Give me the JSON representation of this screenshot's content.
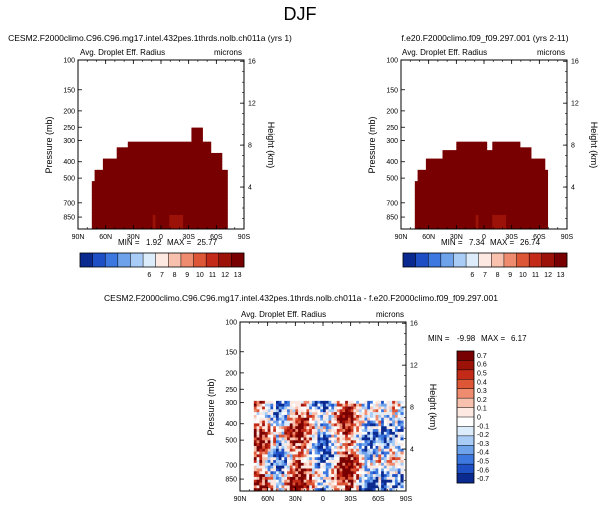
{
  "figure_title": "DJF",
  "colors": {
    "ramp_abs": [
      "#0b2a8f",
      "#1f4fc4",
      "#3c78df",
      "#6ea3ec",
      "#a8ccf6",
      "#dcecfb",
      "#fde9e2",
      "#f8c1ad",
      "#ef8c6f",
      "#dd5636",
      "#c32a18",
      "#9c1208",
      "#780000"
    ],
    "ramp_diff": [
      "#0b2a8f",
      "#1f4fc4",
      "#3c78df",
      "#6ea3ec",
      "#a8ccf6",
      "#dcecfb",
      "#ffffff",
      "#fde9e2",
      "#f8c1ad",
      "#ef8c6f",
      "#dd5636",
      "#c32a18",
      "#9c1208",
      "#780000"
    ]
  },
  "panels": [
    {
      "case_title": "CESM2.F2000climo.C96.C96.mg17.intel.432pes.1thrds.nolb.ch011a (yrs 1)",
      "var_title": "Avg. Droplet Eff. Radius",
      "units": "microns",
      "ylabel": "Pressure (mb)",
      "ylabel_right": "Height (km)",
      "min_label": "MIN =",
      "min_value": "1.92",
      "max_label": "MAX =",
      "max_value": "25.77"
    },
    {
      "case_title": "f.e20.F2000climo.f09_f09.297.001 (yrs 2-11)",
      "var_title": "Avg. Droplet Eff. Radius",
      "units": "microns",
      "ylabel": "Pressure (mb)",
      "ylabel_right": "Height (km)",
      "min_label": "MIN =",
      "min_value": "7.34",
      "max_label": "MAX =",
      "max_value": "26.74"
    },
    {
      "case_title": "CESM2.F2000climo.C96.C96.mg17.intel.432pes.1thrds.nolb.ch011a - f.e20.F2000climo.f09_f09.297.001",
      "var_title": "Avg. Droplet Eff. Radius",
      "units": "microns",
      "ylabel": "Pressure (mb)",
      "ylabel_right": "Height (km)",
      "min_label": "MIN =",
      "min_value": "-9.98",
      "max_label": "MAX =",
      "max_value": "6.17"
    }
  ],
  "chart_data": [
    {
      "type": "heatmap",
      "title": "Avg. Droplet Eff. Radius",
      "subtitle": "CESM2.F2000climo.C96.C96.mg17.intel.432pes.1thrds.nolb.ch011a (yrs 1)",
      "units": "microns",
      "xlabel": "",
      "ylabel": "Pressure (mb)",
      "ylabel_right": "Height (km)",
      "x_ticks": [
        "90N",
        "60N",
        "30N",
        "0",
        "30S",
        "60S",
        "90S"
      ],
      "y_ticks": [
        "100",
        "150",
        "200",
        "250",
        "300",
        "400",
        "500",
        "700",
        "850"
      ],
      "y_ticks_right": [
        "4",
        "8",
        "12",
        "16"
      ],
      "ylim": [
        1000,
        100
      ],
      "y_scale": "log",
      "min": 1.92,
      "max": 25.77,
      "colorbar_levels": [
        "6",
        "7",
        "8",
        "9",
        "10",
        "11",
        "12",
        "13"
      ]
    },
    {
      "type": "heatmap",
      "title": "Avg. Droplet Eff. Radius",
      "subtitle": "f.e20.F2000climo.f09_f09.297.001 (yrs 2-11)",
      "units": "microns",
      "xlabel": "",
      "ylabel": "Pressure (mb)",
      "ylabel_right": "Height (km)",
      "x_ticks": [
        "90N",
        "60N",
        "30N",
        "0",
        "30S",
        "60S",
        "90S"
      ],
      "y_ticks": [
        "100",
        "150",
        "200",
        "250",
        "300",
        "400",
        "500",
        "700",
        "850"
      ],
      "y_ticks_right": [
        "4",
        "8",
        "12",
        "16"
      ],
      "ylim": [
        1000,
        100
      ],
      "y_scale": "log",
      "min": 7.34,
      "max": 26.74,
      "colorbar_levels": [
        "6",
        "7",
        "8",
        "9",
        "10",
        "11",
        "12",
        "13"
      ]
    },
    {
      "type": "heatmap",
      "title": "Avg. Droplet Eff. Radius",
      "subtitle": "CESM2.F2000climo.C96.C96.mg17.intel.432pes.1thrds.nolb.ch011a - f.e20.F2000climo.f09_f09.297.001",
      "units": "microns",
      "xlabel": "",
      "ylabel": "Pressure (mb)",
      "ylabel_right": "Height (km)",
      "x_ticks": [
        "90N",
        "60N",
        "30N",
        "0",
        "30S",
        "60S",
        "90S"
      ],
      "y_ticks": [
        "100",
        "150",
        "200",
        "250",
        "300",
        "400",
        "500",
        "700",
        "850"
      ],
      "y_ticks_right": [
        "4",
        "8",
        "12",
        "16"
      ],
      "ylim": [
        1000,
        100
      ],
      "y_scale": "log",
      "min": -9.98,
      "max": 6.17,
      "colorbar_levels": [
        "0.7",
        "0.6",
        "0.5",
        "0.4",
        "0.3",
        "0.2",
        "0.1",
        "0",
        "-0.1",
        "-0.2",
        "-0.3",
        "-0.4",
        "-0.5",
        "-0.6",
        "-0.7"
      ]
    }
  ]
}
